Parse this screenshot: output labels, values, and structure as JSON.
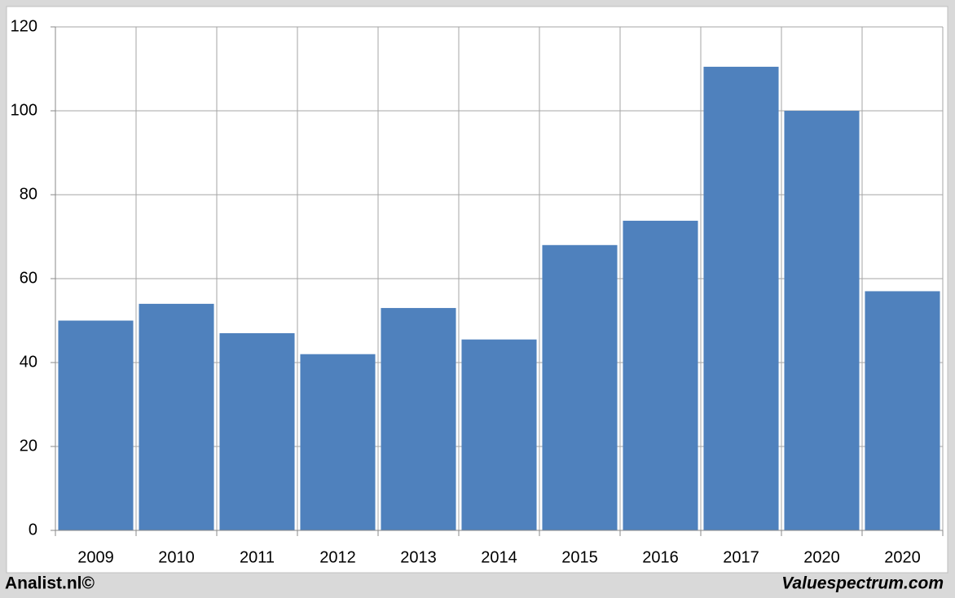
{
  "chart_data": {
    "type": "bar",
    "categories": [
      "2009",
      "2010",
      "2011",
      "2012",
      "2013",
      "2014",
      "2015",
      "2016",
      "2017",
      "2020",
      "2020"
    ],
    "values": [
      50,
      54,
      47,
      42,
      53,
      45.5,
      68,
      73.8,
      110.5,
      100,
      57
    ],
    "color": "#4f81bd",
    "ylim": [
      0,
      120
    ],
    "yticks": [
      0,
      20,
      40,
      60,
      80,
      100,
      120
    ],
    "grid": true,
    "footer_left": "Analist.nl©",
    "footer_right": "Valuespectrum.com"
  }
}
